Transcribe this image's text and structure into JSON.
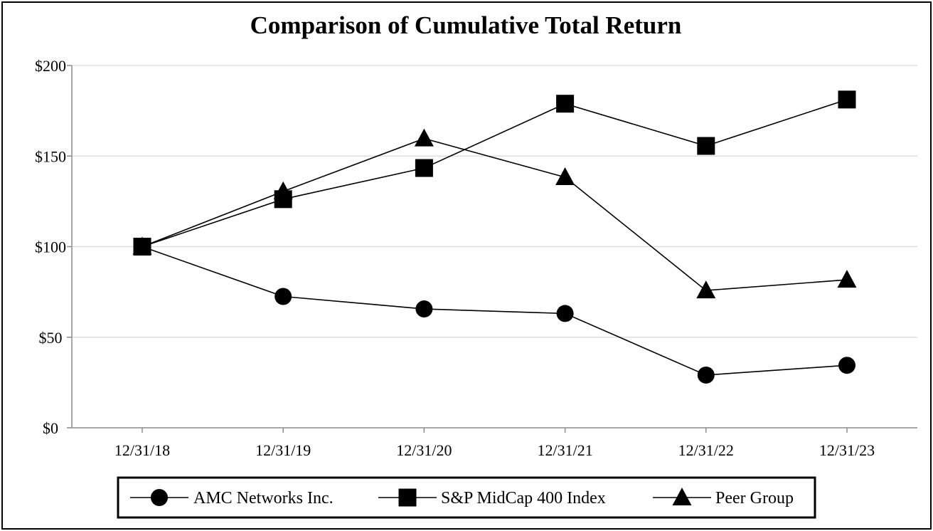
{
  "chart_data": {
    "type": "line",
    "title": "Comparison of Cumulative Total Return",
    "xlabel": "",
    "ylabel": "",
    "categories": [
      "12/31/18",
      "12/31/19",
      "12/31/20",
      "12/31/21",
      "12/31/22",
      "12/31/23"
    ],
    "ylim": [
      0,
      200
    ],
    "yticks": [
      0,
      50,
      100,
      150,
      200
    ],
    "ytick_labels": [
      "$0",
      "$50",
      "$100",
      "$150",
      "$200"
    ],
    "grid": true,
    "legend_position": "bottom",
    "series": [
      {
        "name": "AMC Networks Inc.",
        "marker": "circle",
        "color": "#000000",
        "values": [
          100,
          72.5,
          65.6,
          63.1,
          29.1,
          34.5
        ]
      },
      {
        "name": "S&P MidCap 400 Index",
        "marker": "square",
        "color": "#000000",
        "values": [
          100,
          126.2,
          143.4,
          178.9,
          155.6,
          181.2
        ]
      },
      {
        "name": "Peer Group",
        "marker": "triangle",
        "color": "#000000",
        "values": [
          100,
          130.5,
          159.7,
          138.3,
          75.8,
          81.7
        ]
      }
    ]
  }
}
